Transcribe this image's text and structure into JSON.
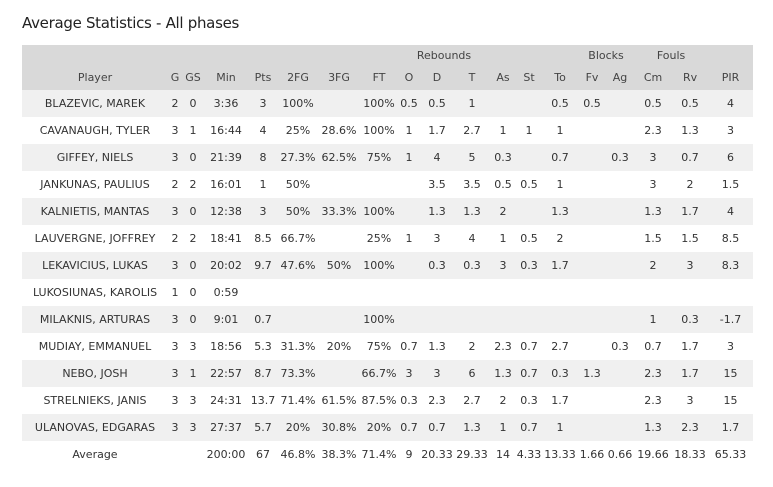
{
  "header": {
    "title": "Average Statistics - All phases"
  },
  "table": {
    "groups": [
      "Rebounds",
      "Blocks",
      "Fouls"
    ],
    "columns": [
      "Player",
      "G",
      "GS",
      "Min",
      "Pts",
      "2FG",
      "3FG",
      "FT",
      "O",
      "D",
      "T",
      "As",
      "St",
      "To",
      "Fv",
      "Ag",
      "Cm",
      "Rv",
      "PIR"
    ],
    "rows": [
      [
        "BLAZEVIC, MAREK",
        "2",
        "0",
        "3:36",
        "3",
        "100%",
        null,
        "100%",
        "0.5",
        "0.5",
        "1",
        null,
        null,
        "0.5",
        "0.5",
        null,
        "0.5",
        "0.5",
        "4"
      ],
      [
        "CAVANAUGH, TYLER",
        "3",
        "1",
        "16:44",
        "4",
        "25%",
        "28.6%",
        "100%",
        "1",
        "1.7",
        "2.7",
        "1",
        "1",
        "1",
        null,
        null,
        "2.3",
        "1.3",
        "3"
      ],
      [
        "GIFFEY, NIELS",
        "3",
        "0",
        "21:39",
        "8",
        "27.3%",
        "62.5%",
        "75%",
        "1",
        "4",
        "5",
        "0.3",
        null,
        "0.7",
        null,
        "0.3",
        "3",
        "0.7",
        "6"
      ],
      [
        "JANKUNAS, PAULIUS",
        "2",
        "2",
        "16:01",
        "1",
        "50%",
        null,
        null,
        null,
        "3.5",
        "3.5",
        "0.5",
        "0.5",
        "1",
        null,
        null,
        "3",
        "2",
        "1.5"
      ],
      [
        "KALNIETIS, MANTAS",
        "3",
        "0",
        "12:38",
        "3",
        "50%",
        "33.3%",
        "100%",
        null,
        "1.3",
        "1.3",
        "2",
        null,
        "1.3",
        null,
        null,
        "1.3",
        "1.7",
        "4"
      ],
      [
        "LAUVERGNE, JOFFREY",
        "2",
        "2",
        "18:41",
        "8.5",
        "66.7%",
        null,
        "25%",
        "1",
        "3",
        "4",
        "1",
        "0.5",
        "2",
        null,
        null,
        "1.5",
        "1.5",
        "8.5"
      ],
      [
        "LEKAVICIUS, LUKAS",
        "3",
        "0",
        "20:02",
        "9.7",
        "47.6%",
        "50%",
        "100%",
        null,
        "0.3",
        "0.3",
        "3",
        "0.3",
        "1.7",
        null,
        null,
        "2",
        "3",
        "8.3"
      ],
      [
        "LUKOSIUNAS, KAROLIS",
        "1",
        "0",
        "0:59",
        null,
        null,
        null,
        null,
        null,
        null,
        null,
        null,
        null,
        null,
        null,
        null,
        null,
        null,
        null
      ],
      [
        "MILAKNIS, ARTURAS",
        "3",
        "0",
        "9:01",
        "0.7",
        null,
        null,
        "100%",
        null,
        null,
        null,
        null,
        null,
        null,
        null,
        null,
        "1",
        "0.3",
        "-1.7"
      ],
      [
        "MUDIAY, EMMANUEL",
        "3",
        "3",
        "18:56",
        "5.3",
        "31.3%",
        "20%",
        "75%",
        "0.7",
        "1.3",
        "2",
        "2.3",
        "0.7",
        "2.7",
        null,
        "0.3",
        "0.7",
        "1.7",
        "3"
      ],
      [
        "NEBO, JOSH",
        "3",
        "1",
        "22:57",
        "8.7",
        "73.3%",
        null,
        "66.7%",
        "3",
        "3",
        "6",
        "1.3",
        "0.7",
        "0.3",
        "1.3",
        null,
        "2.3",
        "1.7",
        "15"
      ],
      [
        "STRELNIEKS, JANIS",
        "3",
        "3",
        "24:31",
        "13.7",
        "71.4%",
        "61.5%",
        "87.5%",
        "0.3",
        "2.3",
        "2.7",
        "2",
        "0.3",
        "1.7",
        null,
        null,
        "2.3",
        "3",
        "15"
      ],
      [
        "ULANOVAS, EDGARAS",
        "3",
        "3",
        "27:37",
        "5.7",
        "20%",
        "30.8%",
        "20%",
        "0.7",
        "0.7",
        "1.3",
        "1",
        "0.7",
        "1",
        null,
        null,
        "1.3",
        "2.3",
        "1.7"
      ],
      [
        "Average",
        null,
        null,
        "200:00",
        "67",
        "46.8%",
        "38.3%",
        "71.4%",
        "9",
        "20.33",
        "29.33",
        "14",
        "4.33",
        "13.33",
        "1.66",
        "0.66",
        "19.66",
        "18.33",
        "65.33"
      ]
    ]
  }
}
